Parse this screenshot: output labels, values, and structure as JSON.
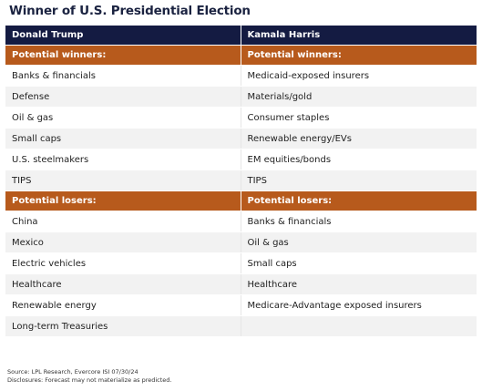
{
  "title": "Winner of U.S. Presidential Election",
  "columns": [
    "Donald Trump",
    "Kamala Harris"
  ],
  "sections": {
    "winners_label": "Potential winners:",
    "losers_label": "Potential losers:"
  },
  "winners": {
    "trump": [
      "Banks & financials",
      "Defense",
      "Oil & gas",
      "Small caps",
      "U.S. steelmakers",
      "TIPS"
    ],
    "harris": [
      "Medicaid-exposed insurers",
      "Materials/gold",
      "Consumer staples",
      "Renewable energy/EVs",
      "EM equities/bonds",
      "TIPS"
    ]
  },
  "losers": {
    "trump": [
      "China",
      "Mexico",
      "Electric vehicles",
      "Healthcare",
      "Renewable energy",
      "Long-term Treasuries"
    ],
    "harris": [
      "Banks & financials",
      "Oil & gas",
      "Small caps",
      "Healthcare",
      "Medicare-Advantage exposed insurers",
      ""
    ]
  },
  "footer": {
    "source": "Source: LPL Research, Evercore ISI 07/30/24",
    "disclosure": "Disclosures: Forecast may not materialize as predicted."
  },
  "colors": {
    "header_bg": "#141b42",
    "section_bg": "#b75a1c",
    "alt_row_bg": "#f2f2f2"
  }
}
